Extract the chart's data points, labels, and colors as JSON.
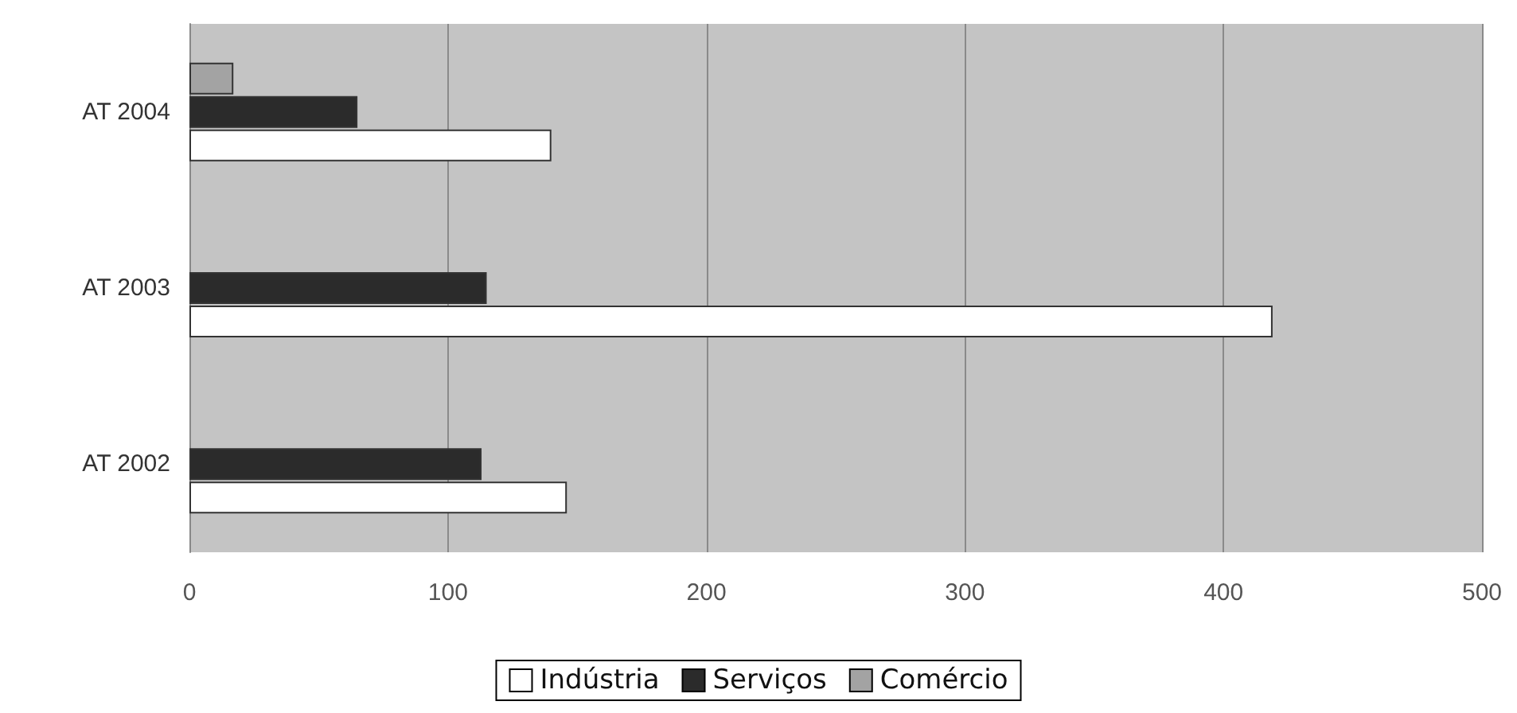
{
  "chart_data": {
    "type": "bar",
    "orientation": "horizontal",
    "categories": [
      "AT 2004",
      "AT 2003",
      "AT 2002"
    ],
    "series": [
      {
        "name": "Indústria",
        "color": "#ffffff",
        "values": [
          140,
          419,
          146
        ]
      },
      {
        "name": "Serviços",
        "color": "#2b2b2b",
        "values": [
          65,
          115,
          113
        ]
      },
      {
        "name": "Comércio",
        "color": "#a3a3a3",
        "values": [
          17,
          null,
          null
        ]
      }
    ],
    "xlim": [
      0,
      500
    ],
    "xticks": [
      0,
      100,
      200,
      300,
      400,
      500
    ],
    "grid": "x",
    "legend": "bottom"
  }
}
